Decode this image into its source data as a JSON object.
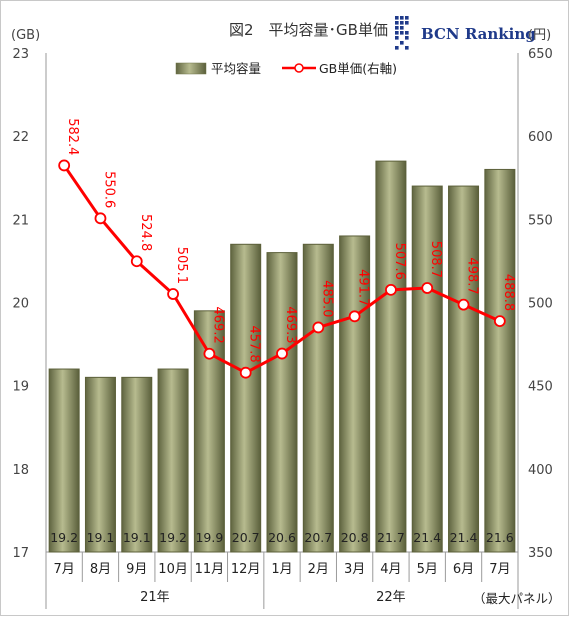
{
  "chart_data": {
    "type": "bar",
    "title": "図2　平均容量･GB単価",
    "categories": [
      "7月",
      "8月",
      "9月",
      "10月",
      "11月",
      "12月",
      "1月",
      "2月",
      "3月",
      "4月",
      "5月",
      "6月",
      "7月"
    ],
    "years": [
      {
        "label": "21年",
        "span": 6
      },
      {
        "label": "22年",
        "span": 7
      }
    ],
    "series": [
      {
        "name": "平均容量",
        "type": "bar",
        "axis": "left",
        "values": [
          19.2,
          19.1,
          19.1,
          19.2,
          19.9,
          20.7,
          20.6,
          20.7,
          20.8,
          21.7,
          21.4,
          21.4,
          21.6
        ],
        "labels": [
          "19.2",
          "19.1",
          "19.1",
          "19.2",
          "19.9",
          "20.7",
          "20.6",
          "20.7",
          "20.8",
          "21.7",
          "21.4",
          "21.4",
          "21.6"
        ],
        "color": "#8a8f5c"
      },
      {
        "name": "GB単価(右軸)",
        "type": "line",
        "axis": "right",
        "values": [
          582.4,
          550.6,
          524.8,
          505.1,
          469.2,
          457.8,
          469.3,
          485.0,
          491.7,
          507.6,
          508.7,
          498.7,
          488.8
        ],
        "labels": [
          "582.4",
          "550.6",
          "524.8",
          "505.1",
          "469.2",
          "457.8",
          "469.3",
          "485.0",
          "491.7",
          "507.6",
          "508.7",
          "498.7",
          "488.8"
        ],
        "color": "#ff0000"
      }
    ],
    "y_left": {
      "unit": "(GB)",
      "ylim": [
        17,
        23
      ],
      "ticks": [
        "17",
        "18",
        "19",
        "20",
        "21",
        "22",
        "23"
      ]
    },
    "y_right": {
      "unit": "(円)",
      "ylim": [
        350,
        650
      ],
      "ticks": [
        "350",
        "400",
        "450",
        "500",
        "550",
        "600",
        "650"
      ]
    },
    "legend_position": "top",
    "grid": false,
    "logo": "BCN Ranking",
    "note": "（最大パネル）"
  }
}
